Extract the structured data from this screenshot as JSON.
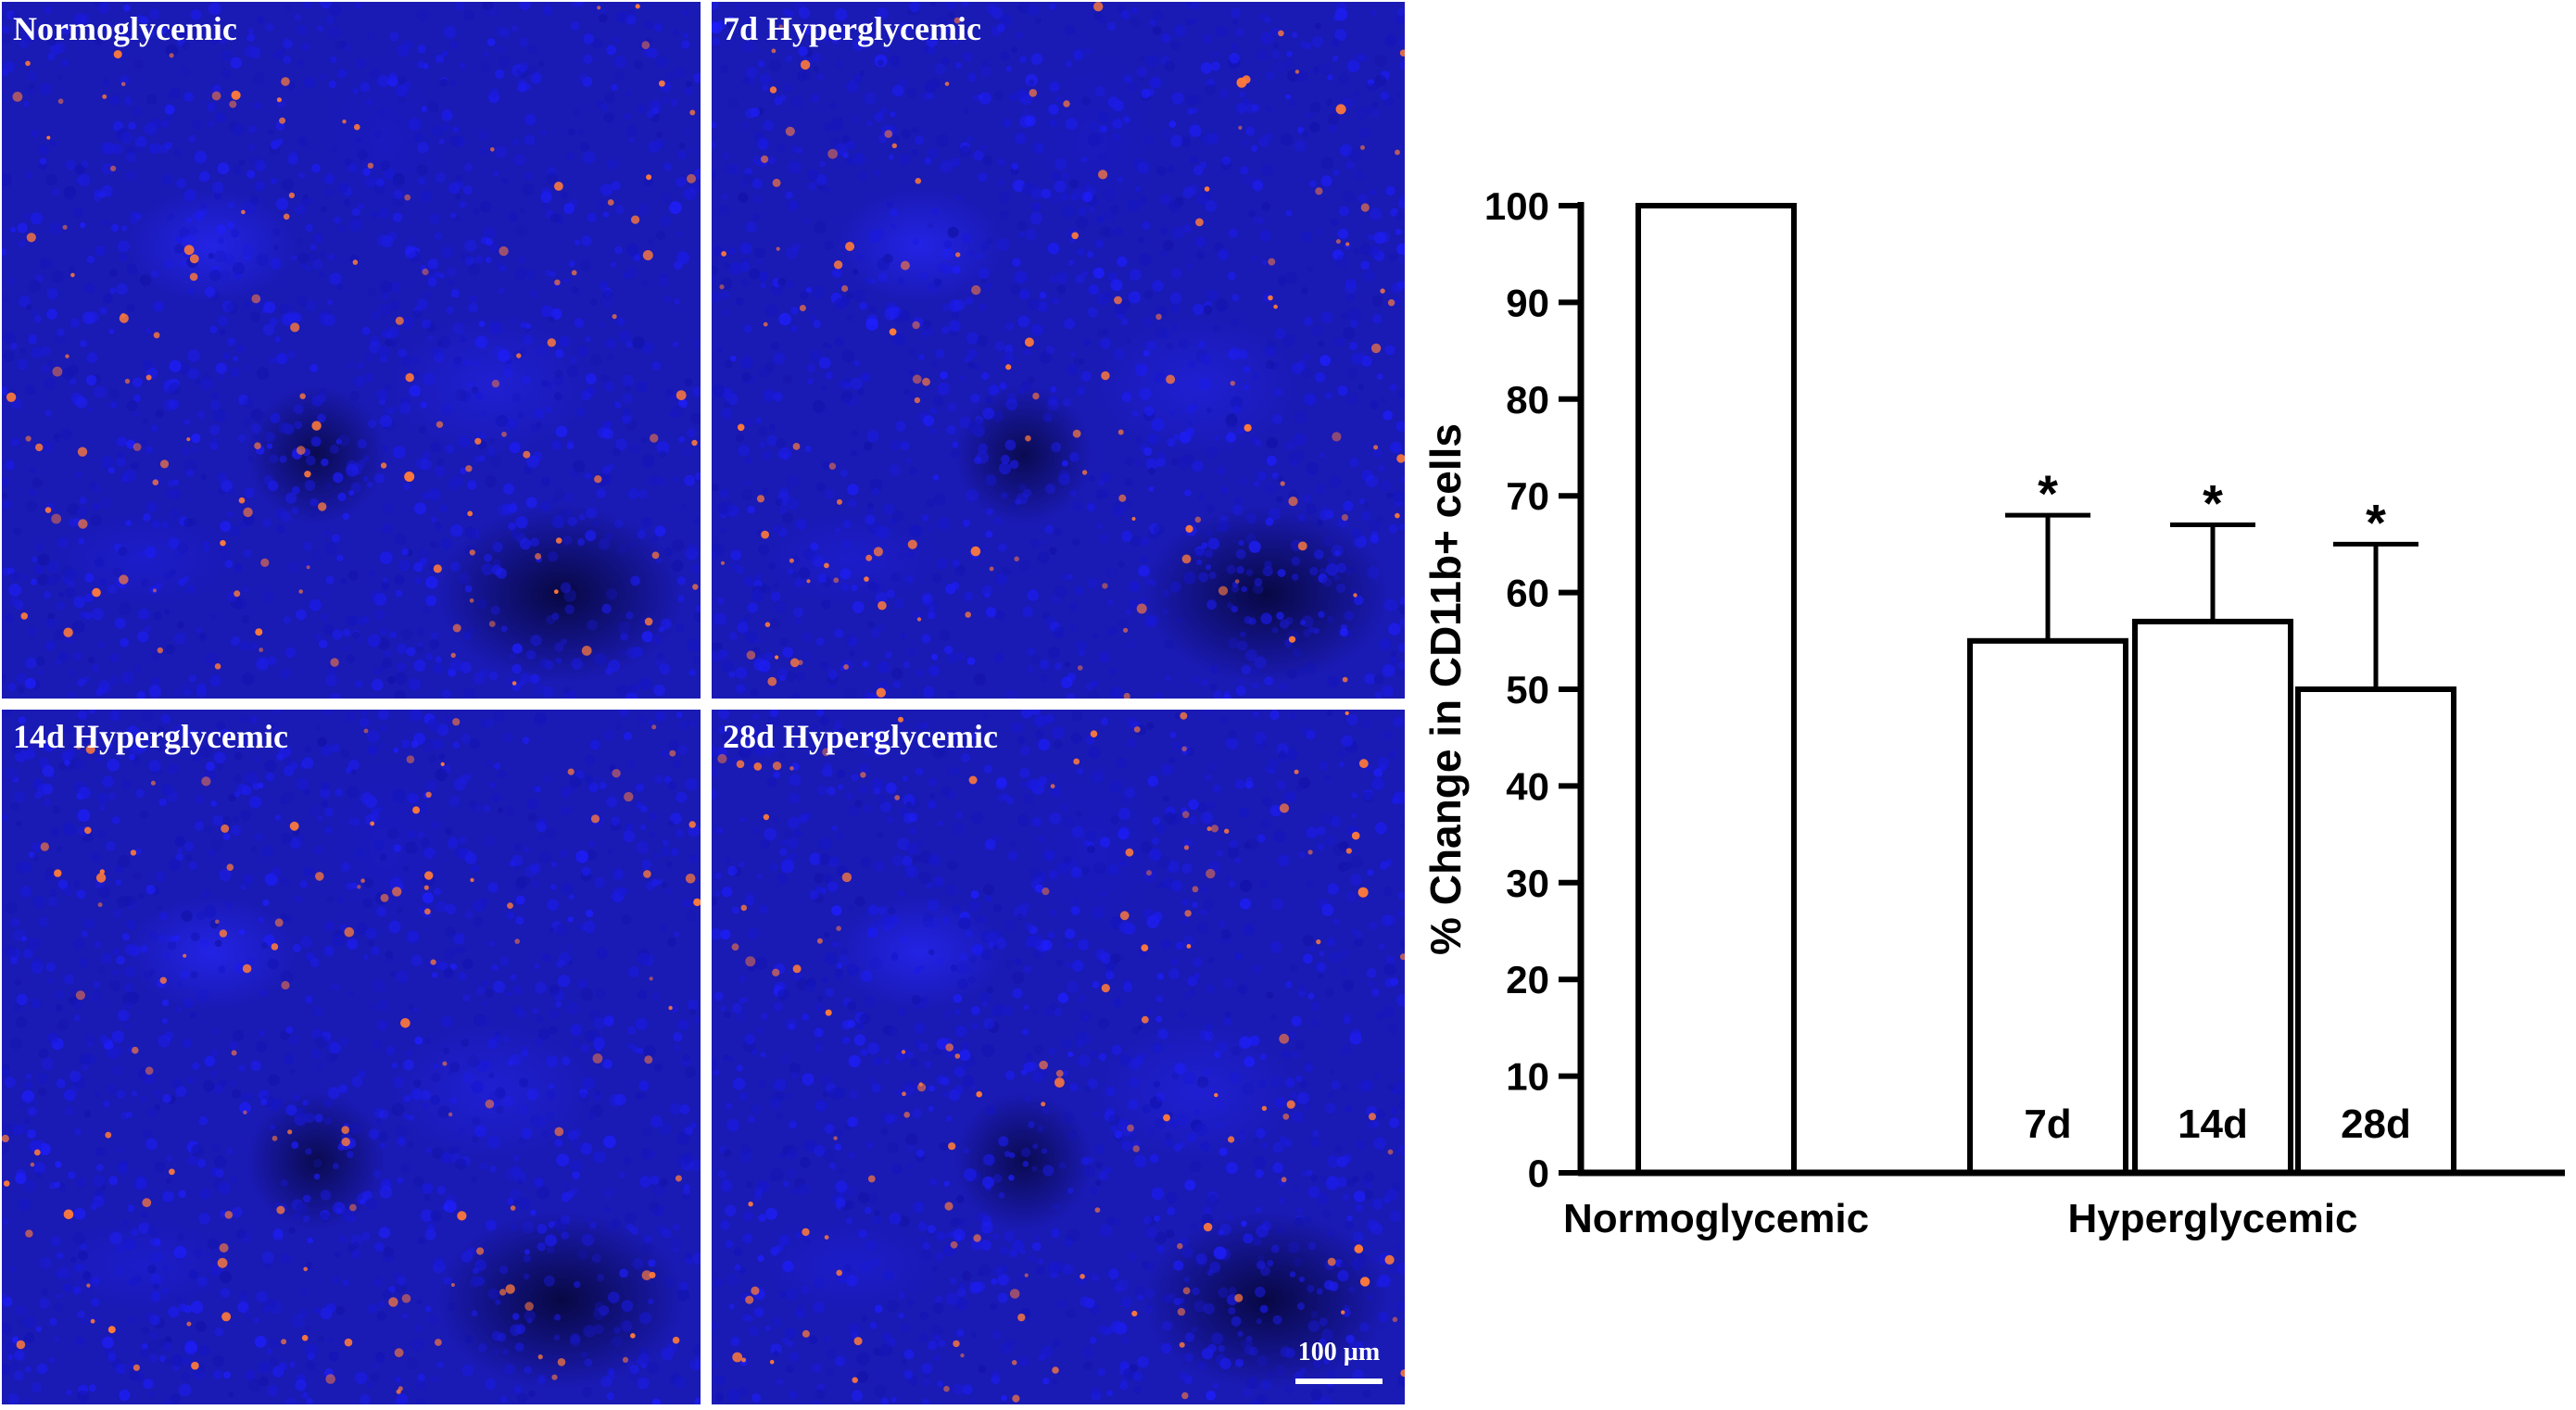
{
  "panels": [
    {
      "label": "Normoglycemic"
    },
    {
      "label": "7d Hyperglycemic"
    },
    {
      "label": "14d Hyperglycemic"
    },
    {
      "label": "28d Hyperglycemic",
      "scale_bar_label": "100 µm"
    }
  ],
  "colors": {
    "nuclei": "#1a1ab4",
    "cd11b_stain": "#ff7a3a",
    "bar_fill": "#ffffff",
    "axis": "#000000"
  },
  "chart_data": {
    "type": "bar",
    "ylabel": "% Change in CD11b+ cells",
    "ylim": [
      0,
      100
    ],
    "yticks": [
      0,
      10,
      20,
      30,
      40,
      50,
      60,
      70,
      80,
      90,
      100
    ],
    "categories": [
      "",
      "7d",
      "14d",
      "28d"
    ],
    "values": [
      100,
      55,
      57,
      50
    ],
    "error_upper": [
      null,
      68,
      67,
      65
    ],
    "significance": [
      "",
      "*",
      "*",
      "*"
    ],
    "groups": [
      {
        "label": "Normoglycemic",
        "categories": [
          ""
        ]
      },
      {
        "label": "Hyperglycemic",
        "categories": [
          "7d",
          "14d",
          "28d"
        ]
      }
    ],
    "grid": false,
    "legend": "none"
  }
}
